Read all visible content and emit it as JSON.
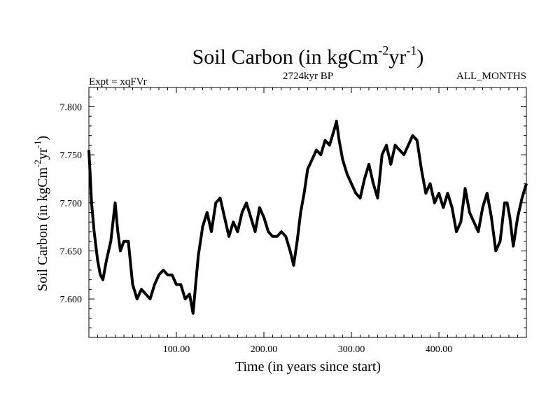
{
  "chart_data": {
    "type": "line",
    "title": {
      "prefix": "Soil Carbon (in kgCm",
      "sup1": "-2",
      "mid": "yr",
      "sup2": "-1",
      "suffix": ")"
    },
    "experiment": "Expt = xqFVr",
    "period": "2724kyr BP",
    "season": "ALL_MONTHS",
    "xlabel": "Time (in years since start)",
    "ylabel": {
      "prefix": "Soil Carbon (in kgCm",
      "sup1": "-2",
      "mid": "yr",
      "sup2": "-1",
      "suffix": ")"
    },
    "xlim": [
      0,
      500
    ],
    "ylim": [
      7.56,
      7.82
    ],
    "xticks": [
      100,
      200,
      300,
      400
    ],
    "xtick_labels": [
      "100.00",
      "200.00",
      "300.00",
      "400.00"
    ],
    "yticks": [
      7.6,
      7.65,
      7.7,
      7.75,
      7.8
    ],
    "ytick_labels": [
      "7.600",
      "7.650",
      "7.700",
      "7.750",
      "7.800"
    ],
    "series": [
      {
        "name": "Soil Carbon",
        "color": "#000000",
        "x": [
          0,
          3,
          6,
          10,
          13,
          16,
          20,
          25,
          30,
          33,
          36,
          40,
          45,
          50,
          55,
          60,
          65,
          70,
          75,
          80,
          85,
          90,
          95,
          100,
          105,
          110,
          115,
          119,
          122,
          125,
          130,
          135,
          140,
          145,
          150,
          155,
          160,
          165,
          170,
          175,
          180,
          185,
          190,
          195,
          200,
          205,
          210,
          215,
          220,
          225,
          230,
          234,
          238,
          242,
          246,
          250,
          255,
          260,
          265,
          270,
          275,
          280,
          283,
          286,
          290,
          295,
          300,
          305,
          310,
          315,
          320,
          325,
          330,
          335,
          340,
          345,
          350,
          355,
          360,
          365,
          370,
          375,
          380,
          385,
          390,
          395,
          400,
          405,
          410,
          415,
          420,
          425,
          430,
          435,
          440,
          445,
          450,
          455,
          460,
          465,
          470,
          475,
          478,
          481,
          485,
          490,
          495,
          500
        ],
        "values": [
          7.755,
          7.7,
          7.67,
          7.64,
          7.625,
          7.62,
          7.64,
          7.66,
          7.7,
          7.67,
          7.65,
          7.66,
          7.66,
          7.615,
          7.6,
          7.61,
          7.605,
          7.6,
          7.615,
          7.625,
          7.63,
          7.625,
          7.625,
          7.615,
          7.615,
          7.6,
          7.605,
          7.585,
          7.615,
          7.645,
          7.675,
          7.69,
          7.67,
          7.7,
          7.705,
          7.685,
          7.665,
          7.68,
          7.67,
          7.69,
          7.7,
          7.685,
          7.67,
          7.695,
          7.685,
          7.67,
          7.665,
          7.665,
          7.67,
          7.665,
          7.65,
          7.635,
          7.66,
          7.69,
          7.71,
          7.735,
          7.745,
          7.755,
          7.75,
          7.765,
          7.76,
          7.775,
          7.785,
          7.765,
          7.745,
          7.73,
          7.72,
          7.71,
          7.705,
          7.725,
          7.74,
          7.72,
          7.705,
          7.75,
          7.76,
          7.74,
          7.76,
          7.755,
          7.75,
          7.76,
          7.77,
          7.765,
          7.735,
          7.71,
          7.72,
          7.7,
          7.71,
          7.695,
          7.71,
          7.695,
          7.67,
          7.68,
          7.715,
          7.69,
          7.68,
          7.67,
          7.695,
          7.71,
          7.685,
          7.65,
          7.66,
          7.7,
          7.7,
          7.685,
          7.655,
          7.685,
          7.705,
          7.72
        ]
      }
    ]
  }
}
